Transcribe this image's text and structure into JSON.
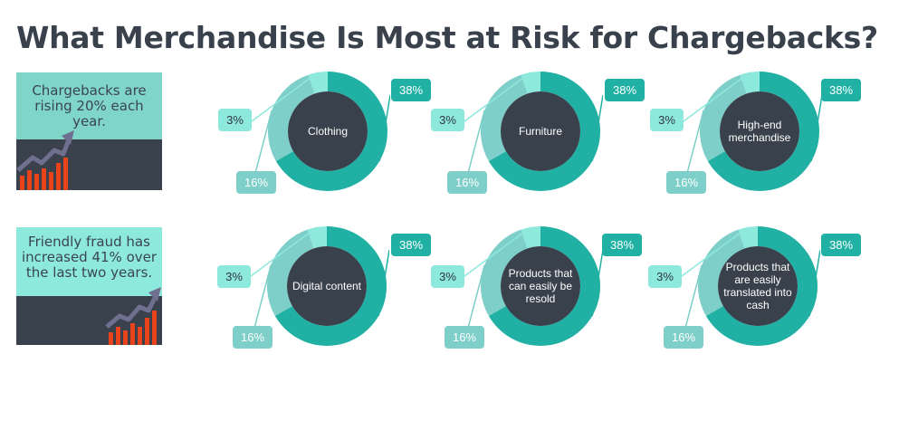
{
  "title": "What Merchandise Is Most at Risk for Chargebacks?",
  "colors": {
    "dark_teal": "#20b1a4",
    "mid_teal": "#7ecfc9",
    "light_teal": "#8ee9dd",
    "center": "#38414c",
    "bar_orange": "#e8431b",
    "arrow": "#6f6f8f"
  },
  "stat_cards": [
    {
      "text": "Chargebacks are rising 20% each year."
    },
    {
      "text": "Friendly fraud has increased 41% over the last two years."
    }
  ],
  "chart_data": [
    {
      "type": "pie",
      "title": "Clothing",
      "labels": [
        "38%",
        "16%",
        "3%"
      ],
      "values": [
        38,
        16,
        3
      ]
    },
    {
      "type": "pie",
      "title": "Furniture",
      "labels": [
        "38%",
        "16%",
        "3%"
      ],
      "values": [
        38,
        16,
        3
      ]
    },
    {
      "type": "pie",
      "title": "High-end merchandise",
      "labels": [
        "38%",
        "16%",
        "3%"
      ],
      "values": [
        38,
        16,
        3
      ]
    },
    {
      "type": "pie",
      "title": "Digital content",
      "labels": [
        "38%",
        "16%",
        "3%"
      ],
      "values": [
        38,
        16,
        3
      ]
    },
    {
      "type": "pie",
      "title": "Products that can easily be resold",
      "labels": [
        "38%",
        "16%",
        "3%"
      ],
      "values": [
        38,
        16,
        3
      ]
    },
    {
      "type": "pie",
      "title": "Products that are easily translated into cash",
      "labels": [
        "38%",
        "16%",
        "3%"
      ],
      "values": [
        38,
        16,
        3
      ]
    }
  ]
}
